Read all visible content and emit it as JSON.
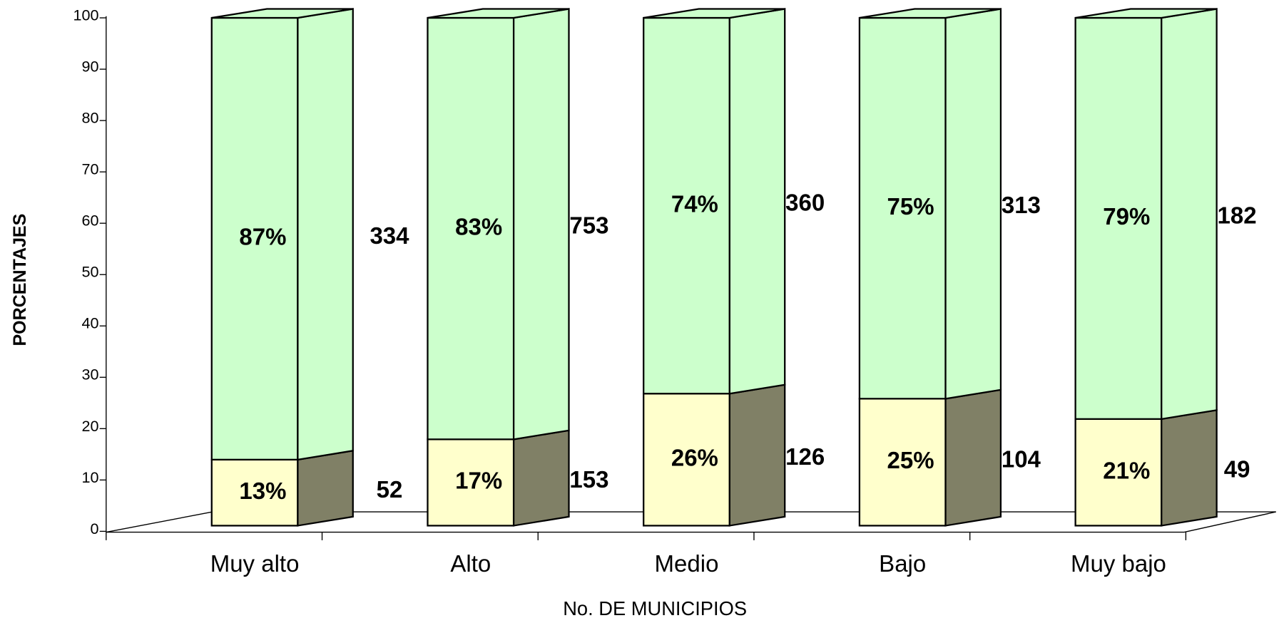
{
  "chart_data": {
    "type": "bar3d_stacked",
    "xlabel": "No. DE MUNICIPIOS",
    "ylabel": "PORCENTAJES",
    "categories": [
      "Muy alto",
      "Alto",
      "Medio",
      "Bajo",
      "Muy bajo"
    ],
    "series": [
      {
        "color": "#ffffcc",
        "side_color": "#808066",
        "values": [
          13,
          17,
          26,
          25,
          21
        ],
        "value_labels": [
          "13%",
          "17%",
          "26%",
          "25%",
          "21%"
        ],
        "counts": [
          52,
          153,
          126,
          104,
          49
        ]
      },
      {
        "color": "#ccffcc",
        "side_color": "#ccffcc",
        "values": [
          87,
          83,
          74,
          75,
          79
        ],
        "value_labels": [
          "87%",
          "83%",
          "74%",
          "75%",
          "79%"
        ],
        "counts": [
          334,
          753,
          360,
          313,
          182
        ]
      }
    ],
    "ylim": [
      0,
      100
    ],
    "yticks": [
      0,
      10,
      20,
      30,
      40,
      50,
      60,
      70,
      80,
      90,
      100
    ]
  }
}
